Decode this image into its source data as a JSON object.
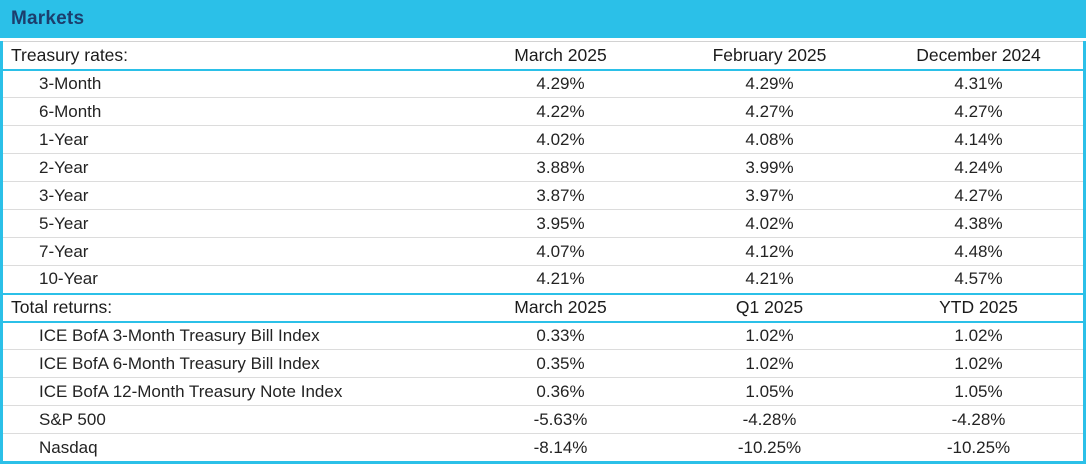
{
  "title": "Markets",
  "colors": {
    "accent_cyan": "#2bc0e8",
    "title_navy": "#1c3e6d",
    "body_text": "#232323",
    "row_separator": "#dcdcdc",
    "background": "#ffffff"
  },
  "chart_data": {
    "type": "table",
    "title": "Markets",
    "sections": [
      {
        "header": "Treasury rates:",
        "columns": [
          "March 2025",
          "February 2025",
          "December 2024"
        ],
        "rows": [
          {
            "label": "3-Month",
            "values": [
              "4.29%",
              "4.29%",
              "4.31%"
            ]
          },
          {
            "label": "6-Month",
            "values": [
              "4.22%",
              "4.27%",
              "4.27%"
            ]
          },
          {
            "label": "1-Year",
            "values": [
              "4.02%",
              "4.08%",
              "4.14%"
            ]
          },
          {
            "label": "2-Year",
            "values": [
              "3.88%",
              "3.99%",
              "4.24%"
            ]
          },
          {
            "label": "3-Year",
            "values": [
              "3.87%",
              "3.97%",
              "4.27%"
            ]
          },
          {
            "label": "5-Year",
            "values": [
              "3.95%",
              "4.02%",
              "4.38%"
            ]
          },
          {
            "label": "7-Year",
            "values": [
              "4.07%",
              "4.12%",
              "4.48%"
            ]
          },
          {
            "label": "10-Year",
            "values": [
              "4.21%",
              "4.21%",
              "4.57%"
            ]
          }
        ]
      },
      {
        "header": "Total returns:",
        "columns": [
          "March 2025",
          "Q1 2025",
          "YTD 2025"
        ],
        "rows": [
          {
            "label": "ICE BofA 3-Month Treasury Bill Index",
            "values": [
              "0.33%",
              "1.02%",
              "1.02%"
            ]
          },
          {
            "label": "ICE BofA 6-Month Treasury Bill Index",
            "values": [
              "0.35%",
              "1.02%",
              "1.02%"
            ]
          },
          {
            "label": "ICE BofA 12-Month Treasury Note Index",
            "values": [
              "0.36%",
              "1.05%",
              "1.05%"
            ]
          },
          {
            "label": "S&P 500",
            "values": [
              "-5.63%",
              "-4.28%",
              "-4.28%"
            ]
          },
          {
            "label": "Nasdaq",
            "values": [
              "-8.14%",
              "-10.25%",
              "-10.25%"
            ]
          }
        ]
      }
    ]
  }
}
